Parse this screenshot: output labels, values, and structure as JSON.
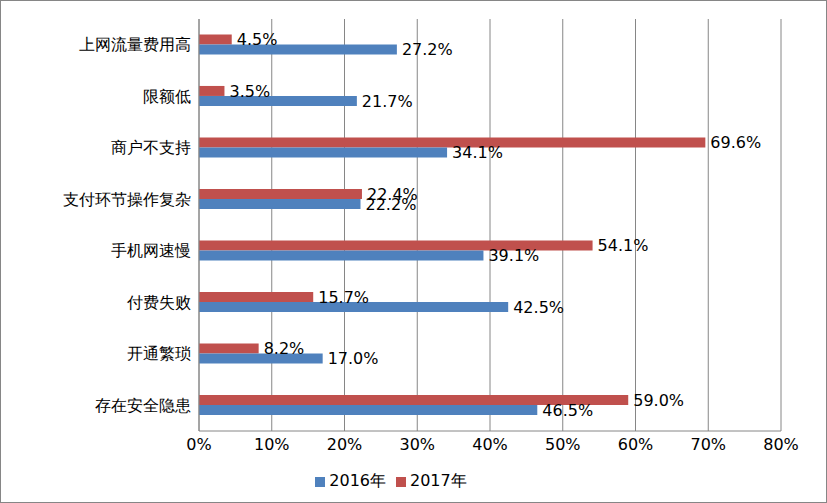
{
  "chart_data": {
    "type": "bar",
    "orientation": "horizontal",
    "categories": [
      "上网流量费用高",
      "限额低",
      "商户不支持",
      "支付环节操作复杂",
      "手机网速慢",
      "付费失败",
      "开通繁琐",
      "存在安全隐患"
    ],
    "series": [
      {
        "name": "2017年",
        "color": "#C0504D",
        "values": [
          4.5,
          3.5,
          69.6,
          22.4,
          54.1,
          15.7,
          8.2,
          59.0
        ],
        "value_labels": [
          "4.5%",
          "3.5%",
          "69.6%",
          "22.4%",
          "54.1%",
          "15.7%",
          "8.2%",
          "59.0%"
        ]
      },
      {
        "name": "2016年",
        "color": "#4F81BD",
        "values": [
          27.2,
          21.7,
          34.1,
          22.2,
          39.1,
          42.5,
          17.0,
          46.5
        ],
        "value_labels": [
          "27.2%",
          "21.7%",
          "34.1%",
          "22.2%",
          "39.1%",
          "42.5%",
          "17.0%",
          "46.5%"
        ]
      }
    ],
    "xlim": [
      0,
      80
    ],
    "xticks": [
      {
        "value": 0,
        "label": "0%"
      },
      {
        "value": 10,
        "label": "10%"
      },
      {
        "value": 20,
        "label": "20%"
      },
      {
        "value": 30,
        "label": "30%"
      },
      {
        "value": 40,
        "label": "40%"
      },
      {
        "value": 50,
        "label": "50%"
      },
      {
        "value": 60,
        "label": "60%"
      },
      {
        "value": 70,
        "label": "70%"
      },
      {
        "value": 80,
        "label": "80%"
      }
    ],
    "grid": true,
    "legend": "bottom",
    "data_labels": true
  }
}
